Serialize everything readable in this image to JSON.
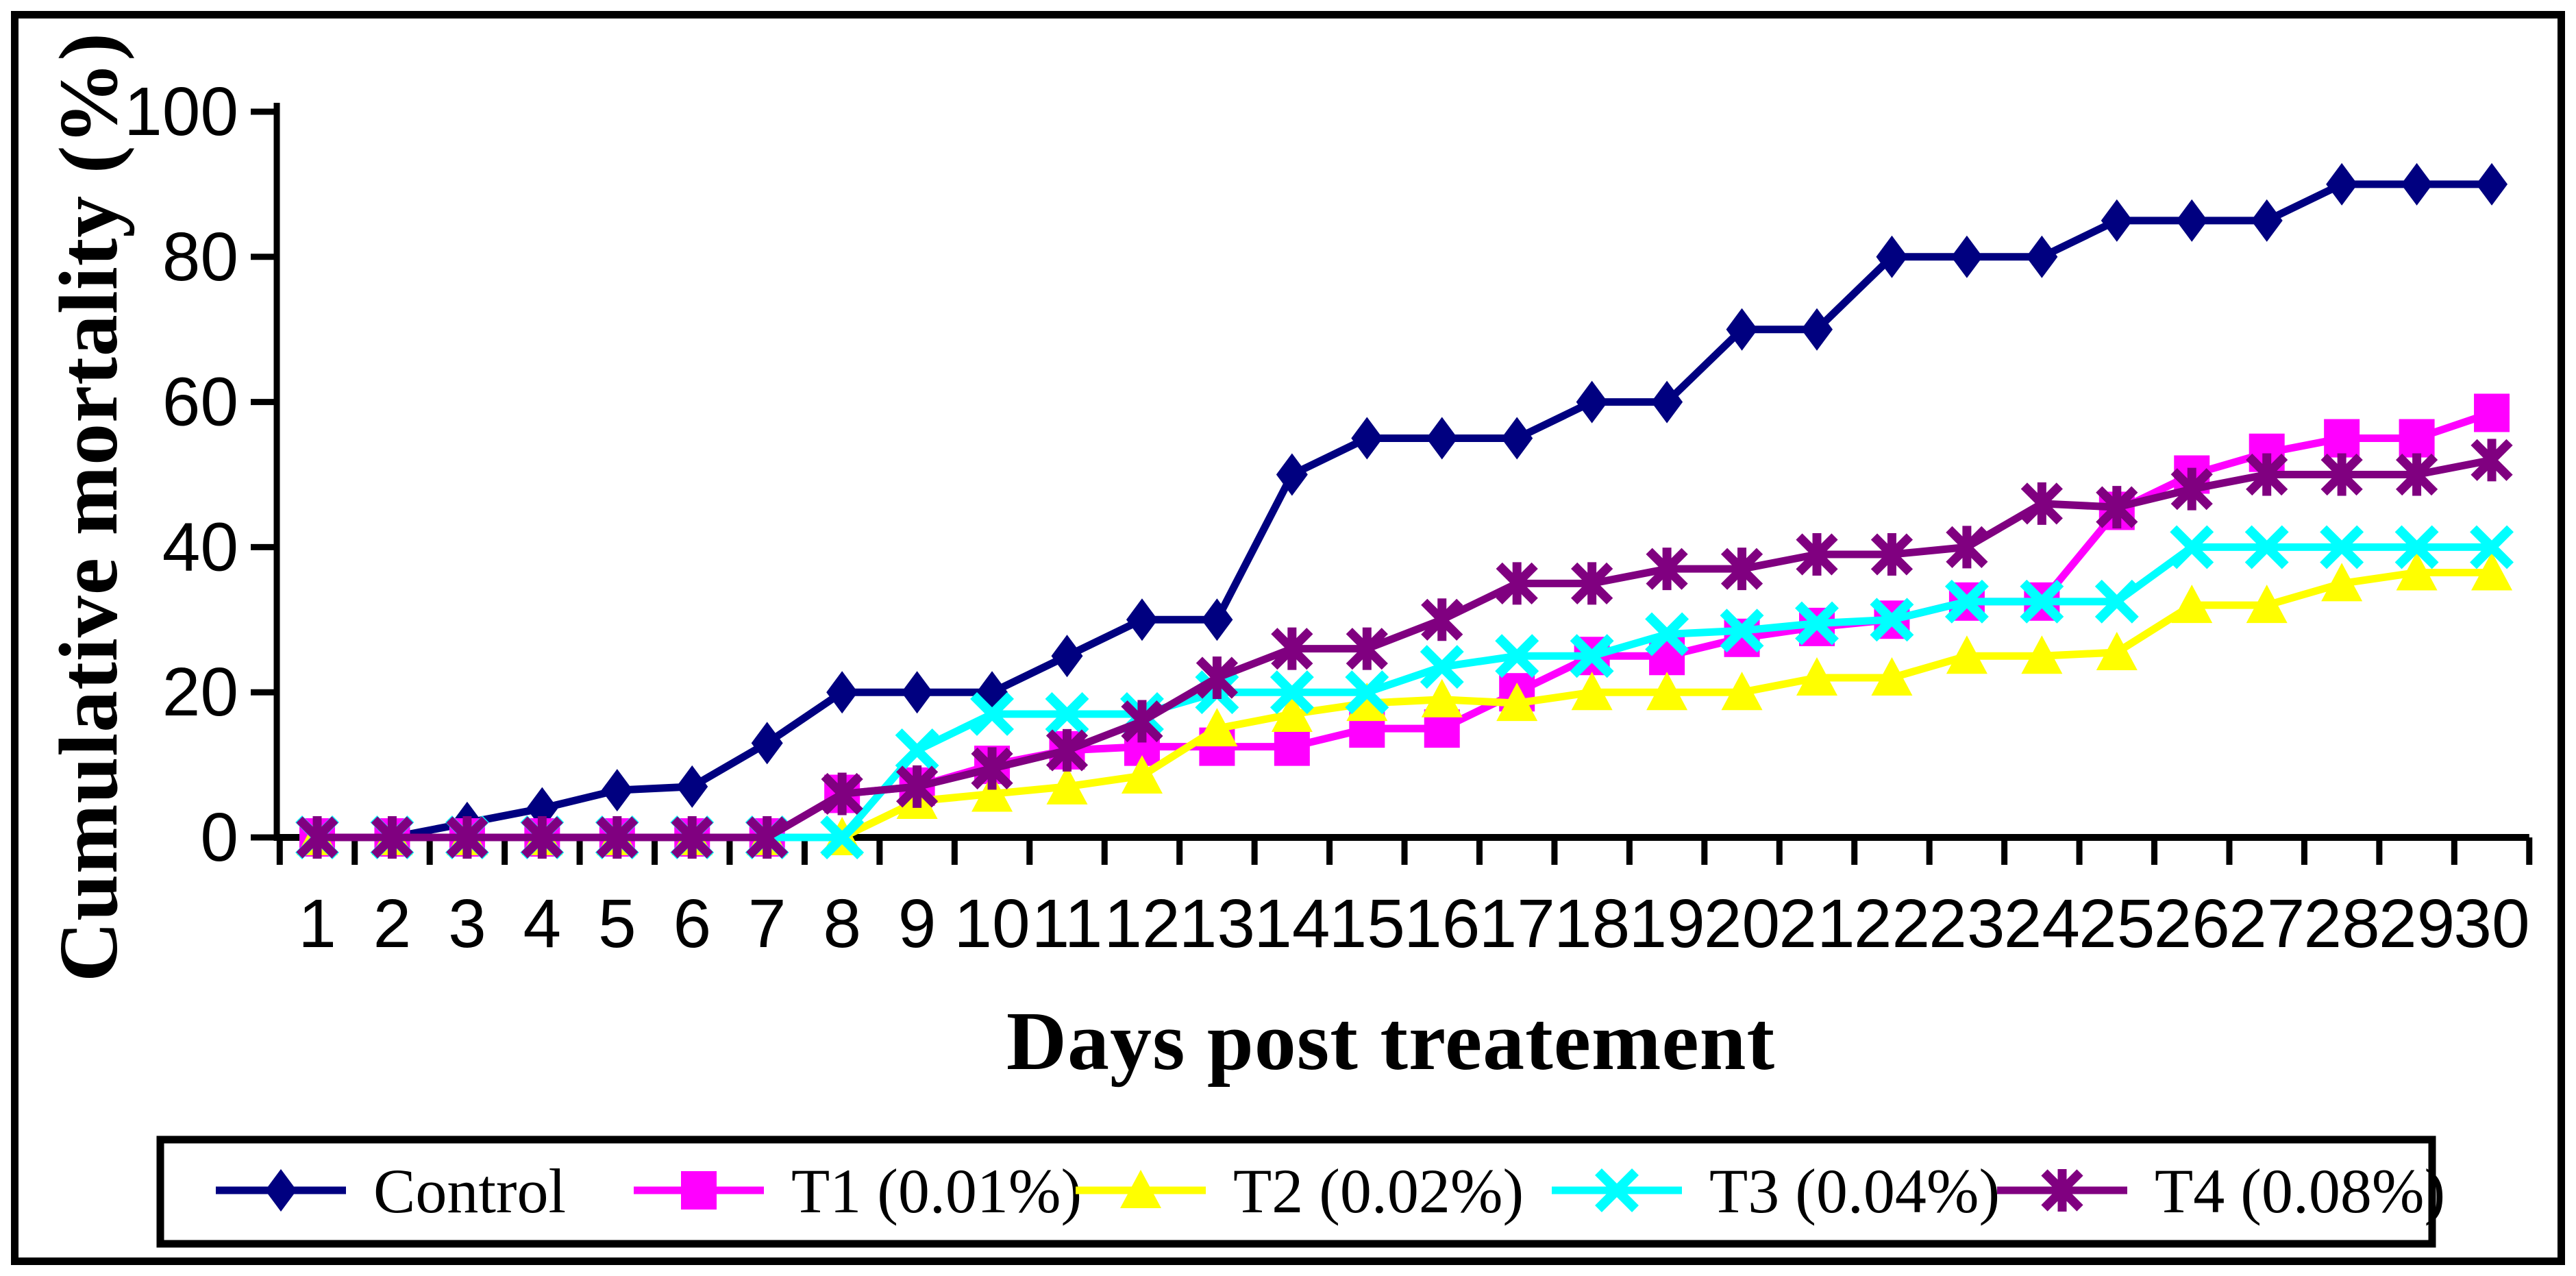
{
  "figure": {
    "background": "#ffffff",
    "border_color": "#000000",
    "axis_color": "#000000",
    "tick_label_color": "#000000"
  },
  "chart_data": {
    "type": "line",
    "title": "",
    "xlabel": "Days post treatement",
    "ylabel": "Cumulative mortality (%)",
    "x": [
      1,
      2,
      3,
      4,
      5,
      6,
      7,
      8,
      9,
      10,
      11,
      12,
      13,
      14,
      15,
      16,
      17,
      18,
      19,
      20,
      21,
      22,
      23,
      24,
      25,
      26,
      27,
      28,
      29,
      30
    ],
    "ylim": [
      0,
      100
    ],
    "yticks": [
      0,
      20,
      40,
      60,
      80,
      100
    ],
    "grid": false,
    "legend_position": "bottom",
    "series": [
      {
        "name": "Control",
        "color": "#000080",
        "marker": "diamond",
        "values": [
          0,
          0,
          2,
          4,
          6.5,
          7,
          13,
          20,
          20,
          20,
          25,
          30,
          30,
          50,
          55,
          55,
          55,
          60,
          60,
          70,
          70,
          80,
          80,
          80,
          85,
          85,
          85,
          90,
          90,
          90
        ]
      },
      {
        "name": "T1 (0.01%)",
        "color": "#FF00FF",
        "marker": "square",
        "values": [
          0,
          0,
          0,
          0,
          0,
          0,
          0,
          6,
          7,
          10,
          12,
          12.5,
          12.5,
          12.5,
          15,
          15,
          20,
          25,
          25,
          27.5,
          29,
          30,
          32.5,
          32.5,
          45,
          50,
          53,
          55,
          55,
          58.5
        ]
      },
      {
        "name": "T2 (0.02%)",
        "color": "#FFFF00",
        "marker": "triangle",
        "values": [
          0,
          0,
          0,
          0,
          0,
          0,
          0,
          0,
          5,
          6,
          7,
          8.5,
          15,
          17,
          18.5,
          19,
          18.5,
          20,
          20,
          20,
          22,
          22,
          25,
          25,
          25.5,
          32,
          32,
          35,
          36.5,
          36.5
        ]
      },
      {
        "name": "T3 (0.04%)",
        "color": "#00FFFF",
        "marker": "x",
        "values": [
          0,
          0,
          0,
          0,
          0,
          0,
          0,
          0,
          12,
          17,
          17,
          17,
          20,
          20,
          20,
          23.5,
          25,
          25,
          28,
          28.5,
          29.5,
          30,
          32.5,
          32.5,
          32.5,
          40,
          40,
          40,
          40,
          40
        ]
      },
      {
        "name": "T4 (0.08%)",
        "color": "#800080",
        "marker": "asterisk",
        "values": [
          0,
          0,
          0,
          0,
          0,
          0,
          0,
          6,
          7,
          9.5,
          12,
          16,
          22,
          26,
          26,
          30,
          35,
          35,
          37,
          37,
          39,
          39,
          40,
          46,
          45.5,
          48,
          50,
          50,
          50,
          52
        ]
      }
    ]
  }
}
